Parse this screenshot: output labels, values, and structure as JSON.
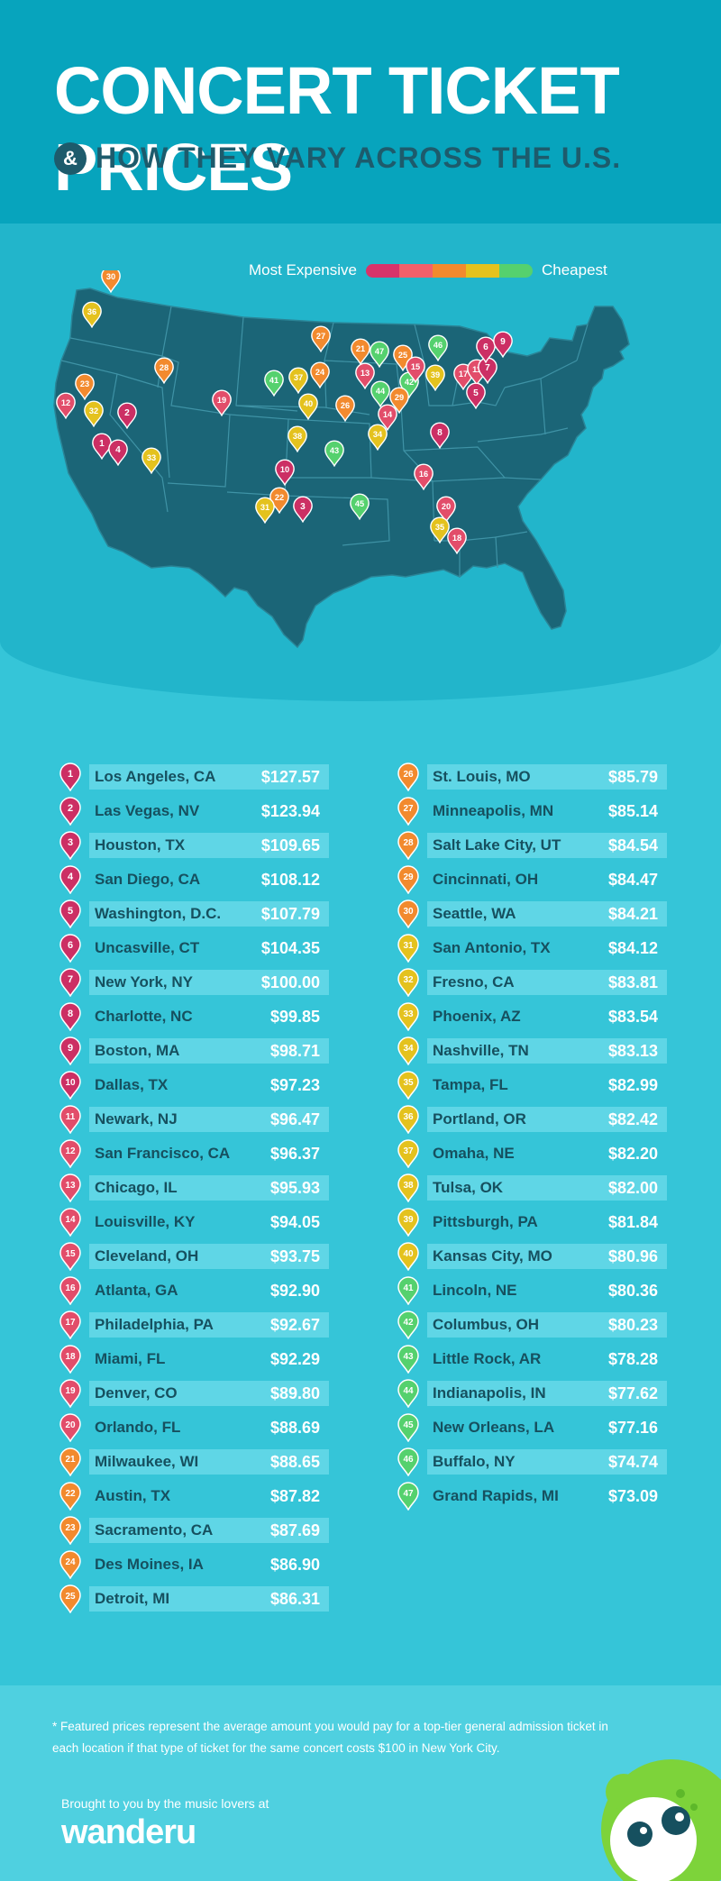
{
  "title": "CONCERT TICKET PRICES",
  "subtitle_amp": "&",
  "subtitle": "HOW THEY VARY ACROSS THE U.S.",
  "legend": {
    "most": "Most Expensive",
    "cheapest": "Cheapest",
    "colors": [
      "#d8336a",
      "#f2606a",
      "#f28a2e",
      "#e4c21e",
      "#55d16e"
    ]
  },
  "tier_colors": {
    "1": "#cc2f64",
    "2": "#e24d6a",
    "3": "#f28a2e",
    "4": "#e4c21e",
    "5": "#55d16e"
  },
  "map_markers": [
    {
      "n": "30",
      "tier": 3
    },
    {
      "n": "36",
      "tier": 4
    },
    {
      "n": "23",
      "tier": 3
    },
    {
      "n": "12",
      "tier": 2
    },
    {
      "n": "32",
      "tier": 4
    },
    {
      "n": "2",
      "tier": 1
    },
    {
      "n": "1",
      "tier": 1
    },
    {
      "n": "4",
      "tier": 1
    },
    {
      "n": "33",
      "tier": 4
    },
    {
      "n": "28",
      "tier": 3
    },
    {
      "n": "19",
      "tier": 2
    },
    {
      "n": "27",
      "tier": 3
    },
    {
      "n": "41",
      "tier": 5
    },
    {
      "n": "37",
      "tier": 4
    },
    {
      "n": "24",
      "tier": 3
    },
    {
      "n": "40",
      "tier": 4
    },
    {
      "n": "38",
      "tier": 4
    },
    {
      "n": "10",
      "tier": 1
    },
    {
      "n": "22",
      "tier": 3
    },
    {
      "n": "31",
      "tier": 4
    },
    {
      "n": "3",
      "tier": 1
    },
    {
      "n": "43",
      "tier": 5
    },
    {
      "n": "26",
      "tier": 3
    },
    {
      "n": "21",
      "tier": 3
    },
    {
      "n": "47",
      "tier": 5
    },
    {
      "n": "13",
      "tier": 2
    },
    {
      "n": "44",
      "tier": 5
    },
    {
      "n": "42",
      "tier": 5
    },
    {
      "n": "29",
      "tier": 3
    },
    {
      "n": "14",
      "tier": 2
    },
    {
      "n": "34",
      "tier": 4
    },
    {
      "n": "25",
      "tier": 3
    },
    {
      "n": "15",
      "tier": 2
    },
    {
      "n": "46",
      "tier": 5
    },
    {
      "n": "39",
      "tier": 4
    },
    {
      "n": "17",
      "tier": 2
    },
    {
      "n": "11",
      "tier": 2
    },
    {
      "n": "7",
      "tier": 1
    },
    {
      "n": "6",
      "tier": 1
    },
    {
      "n": "9",
      "tier": 1
    },
    {
      "n": "5",
      "tier": 1
    },
    {
      "n": "8",
      "tier": 1
    },
    {
      "n": "16",
      "tier": 2
    },
    {
      "n": "45",
      "tier": 5
    },
    {
      "n": "20",
      "tier": 2
    },
    {
      "n": "35",
      "tier": 4
    },
    {
      "n": "18",
      "tier": 2
    }
  ],
  "rankings_left": [
    {
      "rank": "1",
      "city": "Los Angeles, CA",
      "price": "$127.57",
      "tier": 1
    },
    {
      "rank": "2",
      "city": "Las Vegas, NV",
      "price": "$123.94",
      "tier": 1
    },
    {
      "rank": "3",
      "city": "Houston, TX",
      "price": "$109.65",
      "tier": 1
    },
    {
      "rank": "4",
      "city": "San Diego, CA",
      "price": "$108.12",
      "tier": 1
    },
    {
      "rank": "5",
      "city": "Washington, D.C.",
      "price": "$107.79",
      "tier": 1
    },
    {
      "rank": "6",
      "city": "Uncasville, CT",
      "price": "$104.35",
      "tier": 1
    },
    {
      "rank": "7",
      "city": "New York, NY",
      "price": "$100.00",
      "tier": 1
    },
    {
      "rank": "8",
      "city": "Charlotte, NC",
      "price": "$99.85",
      "tier": 1
    },
    {
      "rank": "9",
      "city": "Boston, MA",
      "price": "$98.71",
      "tier": 1
    },
    {
      "rank": "10",
      "city": "Dallas, TX",
      "price": "$97.23",
      "tier": 1
    },
    {
      "rank": "11",
      "city": "Newark, NJ",
      "price": "$96.47",
      "tier": 2
    },
    {
      "rank": "12",
      "city": "San Francisco, CA",
      "price": "$96.37",
      "tier": 2
    },
    {
      "rank": "13",
      "city": "Chicago, IL",
      "price": "$95.93",
      "tier": 2
    },
    {
      "rank": "14",
      "city": "Louisville, KY",
      "price": "$94.05",
      "tier": 2
    },
    {
      "rank": "15",
      "city": "Cleveland, OH",
      "price": "$93.75",
      "tier": 2
    },
    {
      "rank": "16",
      "city": "Atlanta, GA",
      "price": "$92.90",
      "tier": 2
    },
    {
      "rank": "17",
      "city": "Philadelphia, PA",
      "price": "$92.67",
      "tier": 2
    },
    {
      "rank": "18",
      "city": "Miami, FL",
      "price": "$92.29",
      "tier": 2
    },
    {
      "rank": "19",
      "city": "Denver, CO",
      "price": "$89.80",
      "tier": 2
    },
    {
      "rank": "20",
      "city": "Orlando, FL",
      "price": "$88.69",
      "tier": 2
    },
    {
      "rank": "21",
      "city": "Milwaukee, WI",
      "price": "$88.65",
      "tier": 3
    },
    {
      "rank": "22",
      "city": "Austin, TX",
      "price": "$87.82",
      "tier": 3
    },
    {
      "rank": "23",
      "city": "Sacramento, CA",
      "price": "$87.69",
      "tier": 3
    },
    {
      "rank": "24",
      "city": "Des Moines, IA",
      "price": "$86.90",
      "tier": 3
    },
    {
      "rank": "25",
      "city": "Detroit, MI",
      "price": "$86.31",
      "tier": 3
    }
  ],
  "rankings_right": [
    {
      "rank": "26",
      "city": "St. Louis, MO",
      "price": "$85.79",
      "tier": 3
    },
    {
      "rank": "27",
      "city": "Minneapolis, MN",
      "price": "$85.14",
      "tier": 3
    },
    {
      "rank": "28",
      "city": "Salt Lake City, UT",
      "price": "$84.54",
      "tier": 3
    },
    {
      "rank": "29",
      "city": "Cincinnati, OH",
      "price": "$84.47",
      "tier": 3
    },
    {
      "rank": "30",
      "city": "Seattle, WA",
      "price": "$84.21",
      "tier": 3
    },
    {
      "rank": "31",
      "city": "San Antonio, TX",
      "price": "$84.12",
      "tier": 4
    },
    {
      "rank": "32",
      "city": "Fresno, CA",
      "price": "$83.81",
      "tier": 4
    },
    {
      "rank": "33",
      "city": "Phoenix, AZ",
      "price": "$83.54",
      "tier": 4
    },
    {
      "rank": "34",
      "city": "Nashville, TN",
      "price": "$83.13",
      "tier": 4
    },
    {
      "rank": "35",
      "city": "Tampa, FL",
      "price": "$82.99",
      "tier": 4
    },
    {
      "rank": "36",
      "city": "Portland, OR",
      "price": "$82.42",
      "tier": 4
    },
    {
      "rank": "37",
      "city": "Omaha, NE",
      "price": "$82.20",
      "tier": 4
    },
    {
      "rank": "38",
      "city": "Tulsa, OK",
      "price": "$82.00",
      "tier": 4
    },
    {
      "rank": "39",
      "city": "Pittsburgh, PA",
      "price": "$81.84",
      "tier": 4
    },
    {
      "rank": "40",
      "city": "Kansas City, MO",
      "price": "$80.96",
      "tier": 4
    },
    {
      "rank": "41",
      "city": "Lincoln, NE",
      "price": "$80.36",
      "tier": 5
    },
    {
      "rank": "42",
      "city": "Columbus, OH",
      "price": "$80.23",
      "tier": 5
    },
    {
      "rank": "43",
      "city": "Little Rock, AR",
      "price": "$78.28",
      "tier": 5
    },
    {
      "rank": "44",
      "city": "Indianapolis, IN",
      "price": "$77.62",
      "tier": 5
    },
    {
      "rank": "45",
      "city": "New Orleans, LA",
      "price": "$77.16",
      "tier": 5
    },
    {
      "rank": "46",
      "city": "Buffalo, NY",
      "price": "$74.74",
      "tier": 5
    },
    {
      "rank": "47",
      "city": "Grand Rapids, MI",
      "price": "$73.09",
      "tier": 5
    }
  ],
  "footnote": "* Featured prices represent the average amount you would pay for a top-tier general admission ticket in each location if that type of ticket for the same concert costs $100 in New York City.",
  "brought_by": "Brought to you by the music lovers at",
  "brand": "wanderu"
}
